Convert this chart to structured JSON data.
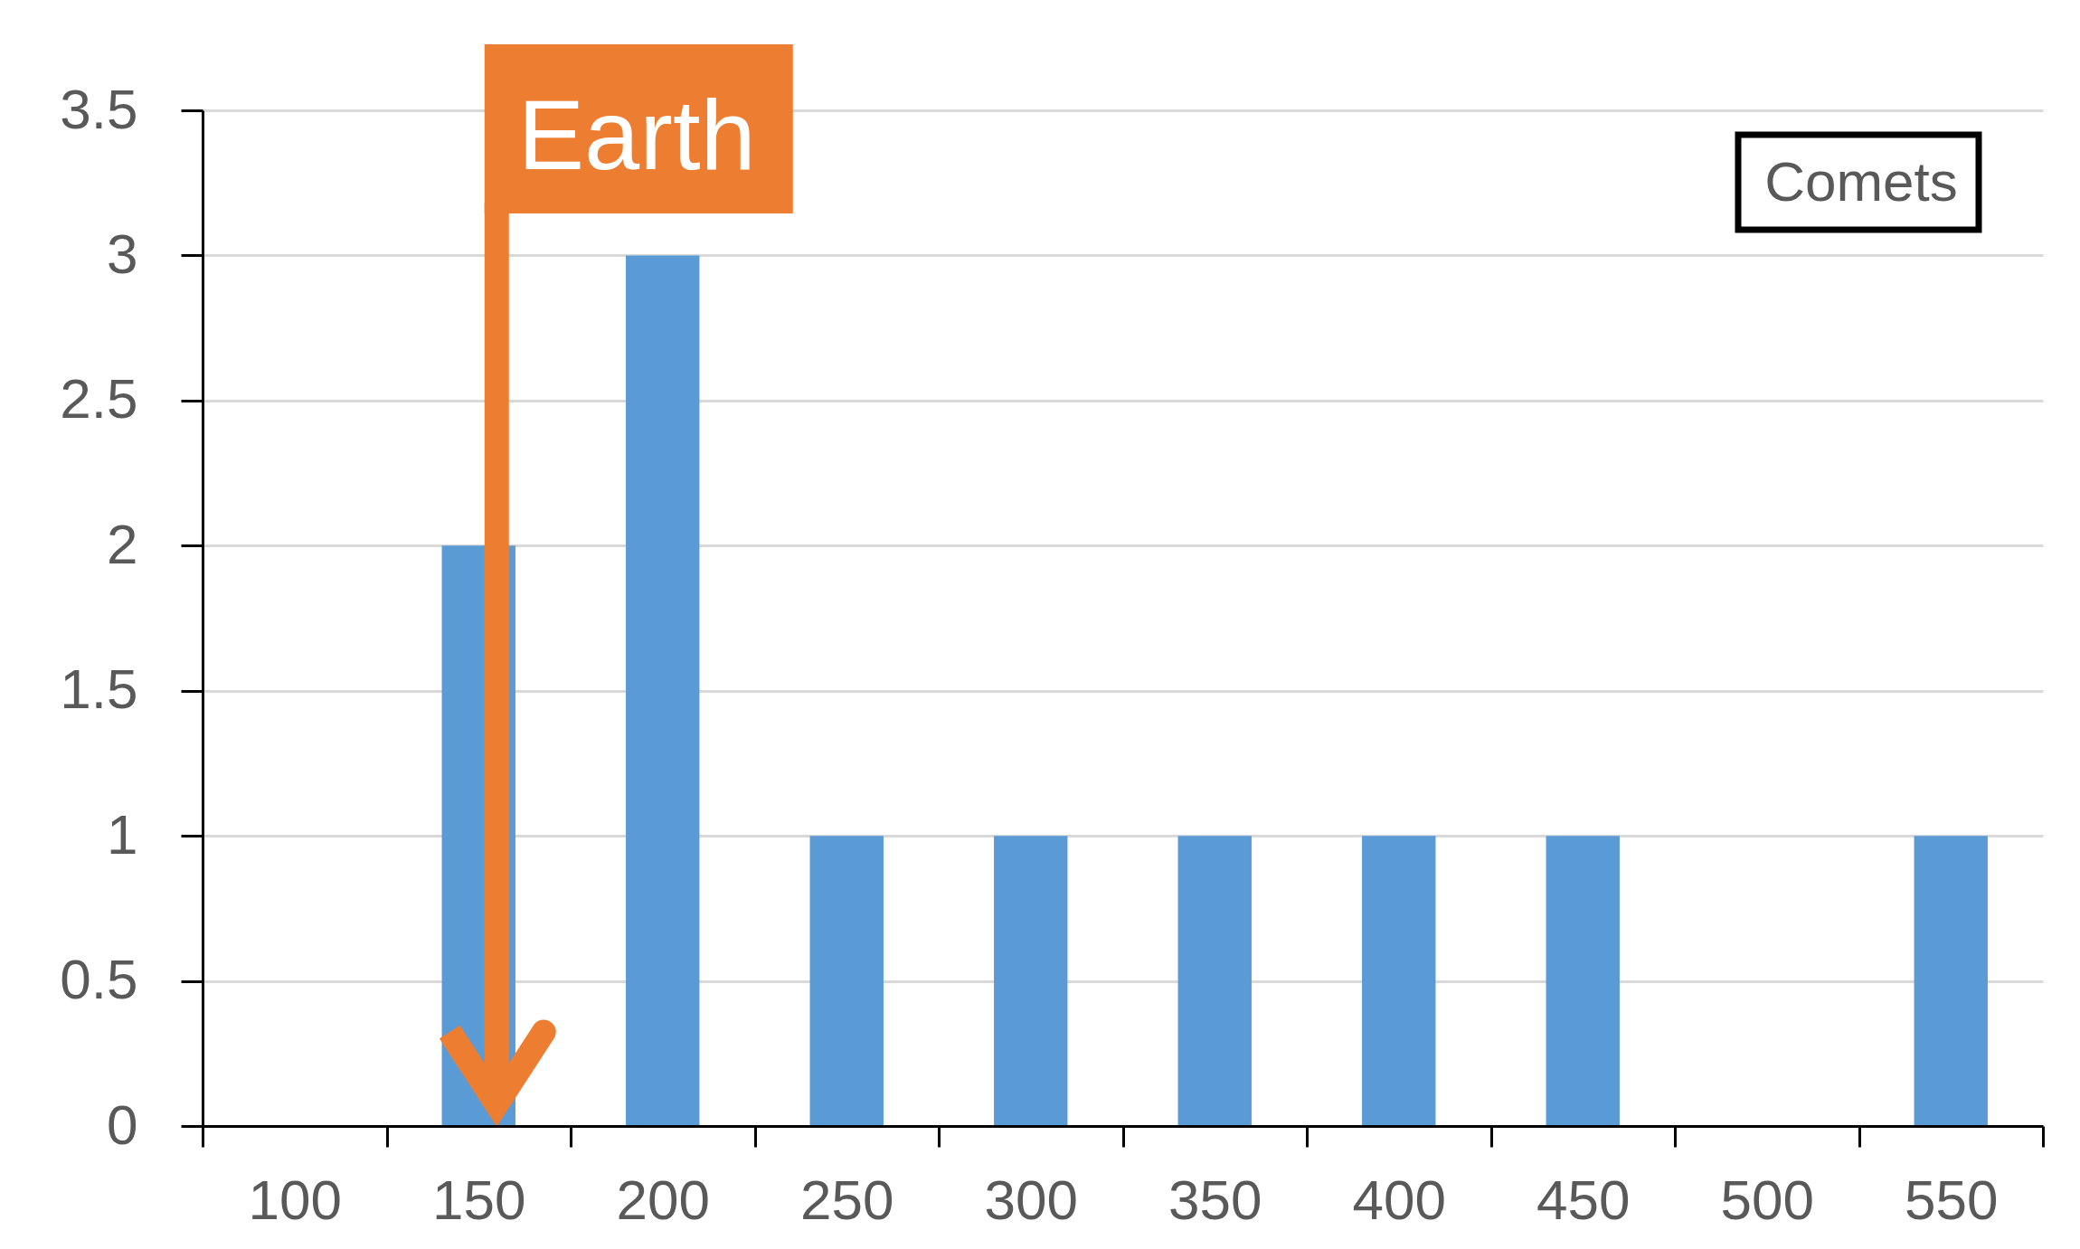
{
  "chart_data": {
    "type": "bar",
    "categories": [
      "100",
      "150",
      "200",
      "250",
      "300",
      "350",
      "400",
      "450",
      "500",
      "550"
    ],
    "values": [
      null,
      2,
      3,
      1,
      1,
      1,
      1,
      1,
      null,
      1
    ],
    "color": "#5b9bd5",
    "ylim": [
      0,
      3.5
    ],
    "yticks": [
      0,
      0.5,
      1,
      1.5,
      2,
      2.5,
      3,
      3.5
    ],
    "grid": "y",
    "ref_lines": [
      {
        "axis": "x",
        "value": "150",
        "label": "Earth",
        "color": "#ed7d31"
      }
    ],
    "annotations": [
      "Comets"
    ]
  }
}
